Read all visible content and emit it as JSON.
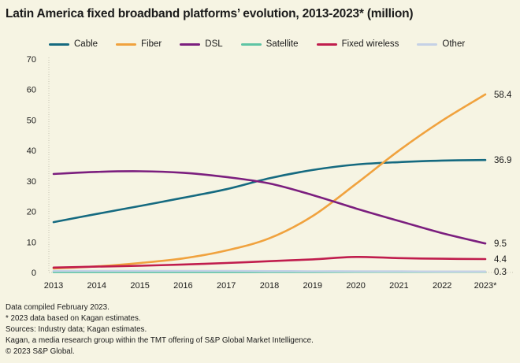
{
  "title": "Latin America fixed broadband platforms’ evolution, 2013-2023* (million)",
  "colors": {
    "background": "#f6f4e3",
    "text": "#1a1a1a",
    "axis": "#c6c4b3"
  },
  "chart_data": {
    "type": "line",
    "title": "Latin America fixed broadband platforms’ evolution, 2013-2023* (million)",
    "categories": [
      "2013",
      "2014",
      "2015",
      "2016",
      "2017",
      "2018",
      "2019",
      "2020",
      "2021",
      "2022",
      "2023*"
    ],
    "series": [
      {
        "name": "Cable",
        "color": "#156a80",
        "values": [
          16.5,
          19.2,
          21.8,
          24.5,
          27.3,
          30.9,
          33.6,
          35.4,
          36.2,
          36.7,
          36.9
        ],
        "end_label": "36.9"
      },
      {
        "name": "Fiber",
        "color": "#f0a23e",
        "values": [
          1.3,
          2.0,
          3.1,
          4.6,
          7.2,
          11.2,
          18.5,
          29.0,
          40.0,
          49.8,
          58.4
        ],
        "end_label": "58.4"
      },
      {
        "name": "DSL",
        "color": "#7b1e7e",
        "values": [
          32.3,
          33.0,
          33.2,
          32.7,
          31.3,
          29.2,
          25.4,
          21.0,
          16.9,
          12.9,
          9.5
        ],
        "end_label": "9.5"
      },
      {
        "name": "Satellite",
        "color": "#5ec4a4",
        "values": [
          0.1,
          0.1,
          0.1,
          0.1,
          0.1,
          0.15,
          0.15,
          0.2,
          0.2,
          0.2,
          0.2
        ],
        "end_label": null
      },
      {
        "name": "Fixed wireless",
        "color": "#c01d4d",
        "values": [
          1.6,
          1.9,
          2.2,
          2.6,
          3.1,
          3.7,
          4.3,
          5.1,
          4.7,
          4.5,
          4.4
        ],
        "end_label": "4.4"
      },
      {
        "name": "Other",
        "color": "#c5d1e6",
        "values": [
          0.5,
          0.5,
          0.5,
          0.5,
          0.5,
          0.45,
          0.4,
          0.4,
          0.35,
          0.3,
          0.3
        ],
        "end_label": "0.3"
      }
    ],
    "ylim": [
      0,
      70
    ],
    "yticks": [
      0,
      10,
      20,
      30,
      40,
      50,
      60,
      70
    ],
    "xlabel": "",
    "ylabel": "",
    "grid": "off",
    "legend_position": "top"
  },
  "footer": {
    "lines": [
      "Data compiled February 2023.",
      "* 2023 data based on Kagan estimates.",
      "Sources: Industry data; Kagan estimates.",
      "Kagan, a media research group within the TMT offering of S&P Global Market Intelligence.",
      "© 2023 S&P Global."
    ]
  }
}
